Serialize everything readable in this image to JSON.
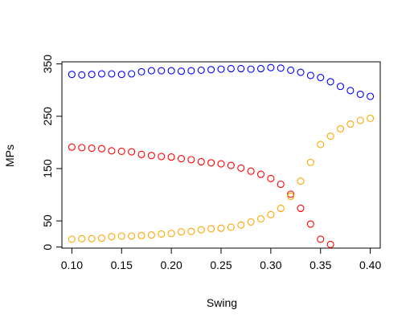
{
  "chart_data": {
    "type": "scatter",
    "title": "",
    "xlabel": "Swing",
    "ylabel": "MPs",
    "xlim": [
      0.09,
      0.41
    ],
    "ylim": [
      -2,
      354
    ],
    "xticks": [
      "0.10",
      "0.15",
      "0.20",
      "0.25",
      "0.30",
      "0.35",
      "0.40"
    ],
    "yticks": [
      "0",
      "50",
      "150",
      "250",
      "350"
    ],
    "grid": false,
    "legend": "none",
    "series": [
      {
        "color": "#0000ff",
        "points": [
          [
            0.1,
            330
          ],
          [
            0.11,
            329
          ],
          [
            0.12,
            330
          ],
          [
            0.13,
            331
          ],
          [
            0.14,
            331
          ],
          [
            0.15,
            330
          ],
          [
            0.16,
            331
          ],
          [
            0.17,
            335
          ],
          [
            0.18,
            337
          ],
          [
            0.19,
            337
          ],
          [
            0.2,
            337
          ],
          [
            0.21,
            336
          ],
          [
            0.22,
            337
          ],
          [
            0.23,
            338
          ],
          [
            0.24,
            339
          ],
          [
            0.25,
            340
          ],
          [
            0.26,
            341
          ],
          [
            0.27,
            341
          ],
          [
            0.28,
            340
          ],
          [
            0.29,
            341
          ],
          [
            0.3,
            343
          ],
          [
            0.31,
            342
          ],
          [
            0.32,
            338
          ],
          [
            0.33,
            334
          ],
          [
            0.34,
            328
          ],
          [
            0.35,
            324
          ],
          [
            0.36,
            316
          ],
          [
            0.37,
            307
          ],
          [
            0.38,
            299
          ],
          [
            0.39,
            292
          ],
          [
            0.4,
            288
          ]
        ]
      },
      {
        "color": "#ff0000",
        "points": [
          [
            0.1,
            191
          ],
          [
            0.11,
            190
          ],
          [
            0.12,
            189
          ],
          [
            0.13,
            188
          ],
          [
            0.14,
            184
          ],
          [
            0.15,
            183
          ],
          [
            0.16,
            182
          ],
          [
            0.17,
            177
          ],
          [
            0.18,
            175
          ],
          [
            0.19,
            173
          ],
          [
            0.2,
            172
          ],
          [
            0.21,
            169
          ],
          [
            0.22,
            167
          ],
          [
            0.23,
            163
          ],
          [
            0.24,
            161
          ],
          [
            0.25,
            159
          ],
          [
            0.26,
            156
          ],
          [
            0.27,
            151
          ],
          [
            0.28,
            145
          ],
          [
            0.29,
            139
          ],
          [
            0.3,
            131
          ],
          [
            0.31,
            120
          ],
          [
            0.32,
            101
          ],
          [
            0.33,
            74
          ],
          [
            0.34,
            44
          ],
          [
            0.35,
            15
          ],
          [
            0.36,
            5
          ]
        ]
      },
      {
        "color": "#ffa500",
        "points": [
          [
            0.1,
            15
          ],
          [
            0.11,
            16
          ],
          [
            0.12,
            16
          ],
          [
            0.13,
            17
          ],
          [
            0.14,
            20
          ],
          [
            0.15,
            21
          ],
          [
            0.16,
            21
          ],
          [
            0.17,
            22
          ],
          [
            0.18,
            23
          ],
          [
            0.19,
            25
          ],
          [
            0.2,
            26
          ],
          [
            0.21,
            29
          ],
          [
            0.22,
            30
          ],
          [
            0.23,
            33
          ],
          [
            0.24,
            35
          ],
          [
            0.25,
            36
          ],
          [
            0.26,
            38
          ],
          [
            0.27,
            42
          ],
          [
            0.28,
            48
          ],
          [
            0.29,
            54
          ],
          [
            0.3,
            62
          ],
          [
            0.31,
            74
          ],
          [
            0.32,
            97
          ],
          [
            0.33,
            126
          ],
          [
            0.34,
            162
          ],
          [
            0.35,
            196
          ],
          [
            0.36,
            212
          ],
          [
            0.37,
            226
          ],
          [
            0.38,
            235
          ],
          [
            0.39,
            242
          ],
          [
            0.4,
            246
          ]
        ]
      }
    ]
  }
}
